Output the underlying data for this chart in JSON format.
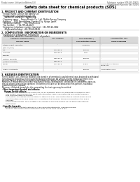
{
  "bg_color": "#ffffff",
  "header_left": "Product name: Lithium Ion Battery Cell",
  "header_right_line1": "Substance number: SDS-049-00810",
  "header_right_line2": "Established / Revision: Dec.7.2010",
  "title": "Safety data sheet for chemical products (SDS)",
  "section1_title": "1. PRODUCT AND COMPANY IDENTIFICATION",
  "section1_items": [
    "· Product name: Lithium Ion Battery Cell",
    "· Product code: Cylindrical-type cell",
    "    SNY86500, SNY86502, SNY86504A",
    "· Company name:    Sanyo Electric Co., Ltd., Mobile Energy Company",
    "· Address:    2001 Kamiorihara, Sumoto-City, Hyogo, Japan",
    "· Telephone number:    +81-799-26-4111",
    "· Fax number:    +81-799-26-4129",
    "· Emergency telephone number (daytime): +81-799-26-3962",
    "    (Night and holiday): +81-799-26-4129"
  ],
  "section2_title": "2. COMPOSITION / INFORMATION ON INGREDIENTS",
  "section2_items": [
    "· Substance or preparation: Preparation",
    "· Information about the chemical nature of product:"
  ],
  "table_col_headers_row1": [
    "Common chemical name /",
    "CAS number",
    "Concentration /",
    "Classification and"
  ],
  "table_col_headers_row2": [
    "Service name",
    "",
    "Concentration range",
    "hazard labeling"
  ],
  "table_rows": [
    [
      "Lithium cobalt (laminate)",
      "-",
      "(30-60%)",
      "-"
    ],
    [
      "(LiMn-Co/NiO2)",
      "",
      "",
      ""
    ],
    [
      "Iron",
      "7439-89-6",
      "15-25%",
      "-"
    ],
    [
      "Aluminum",
      "7429-90-5",
      "2-6%",
      "-"
    ],
    [
      "Graphite",
      "",
      "",
      ""
    ],
    [
      "(Natural graphite)",
      "7782-42-5",
      "10-20%",
      "-"
    ],
    [
      "(Artificial graphite)",
      "7782-44-7",
      "",
      ""
    ],
    [
      "Copper",
      "7440-50-8",
      "5-15%",
      "Sensitization of the skin\ngroup R42"
    ],
    [
      "",
      "",
      "",
      ""
    ],
    [
      "Organic electrolyte",
      "-",
      "10-20%",
      "Inflammatory liquid"
    ]
  ],
  "section3_title": "3. HAZARDS IDENTIFICATION",
  "section3_paras": [
    "For this battery cell, chemical materials are stored in a hermetically-sealed metal case, designed to withstand",
    "temperatures and pressures encountered during normal use. As a result, during normal use, there is no",
    "physical danger of ignition or explosion and there is no danger of hazardous materials leakage.",
    "However, if exposed to a fire and/or mechanical shocks, decomposed, vented electric-smoke may take use,",
    "the gas release vent can be operated. The battery cell case will be breached of fire-portions, hazardous",
    "materials may be released.",
    "Moreover, if heated strongly by the surrounding fire, toxic gas may be emitted."
  ],
  "section3_bullet1": "· Most important hazard and effects:",
  "section3_human": "Human health effects:",
  "section3_health_lines": [
    "Inhalation: The release of the electrolyte has an anesthetic action and stimulates in respiratory tract.",
    "Skin contact: The release of the electrolyte stimulates a skin. The electrolyte skin contact causes a",
    "sore and stimulation on the skin.",
    "Eye contact: The release of the electrolyte stimulates eyes. The electrolyte eye contact causes a sore",
    "and stimulation on the eye. Especially, a substance that causes a strong inflammation of the eye is",
    "contained.",
    "Environmental effects: Since a battery cell remains in the environment, do not throw out it into the",
    "environment."
  ],
  "section3_bullet2": "· Specific hazards:",
  "section3_specific_lines": [
    "If the electrolyte contacts with water, it will generate detrimental hydrogen fluoride.",
    "Since the said electrolyte is inflammable liquid, do not bring close to fire."
  ],
  "col_positions": [
    3,
    62,
    103,
    143,
    197
  ],
  "table_header_bg": "#d8d8d8",
  "table_border_color": "#888888",
  "table_row_alt_bg": "#f0f0f0"
}
